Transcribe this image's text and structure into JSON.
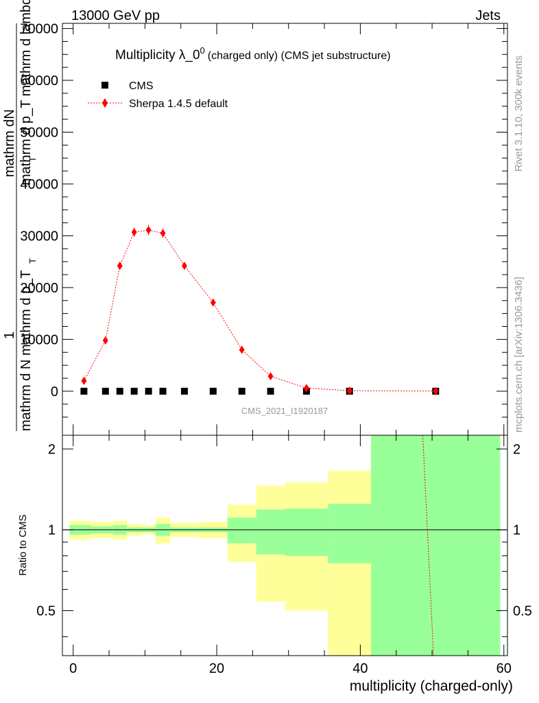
{
  "header": {
    "left": "13000 GeV pp",
    "right": "Jets"
  },
  "side_labels": {
    "rivet": "Rivet 3.1.10,  300k events",
    "mcplots": "mcplots.cern.ch [arXiv:1306.3436]"
  },
  "watermark": "CMS_2021_I1920187",
  "colors": {
    "mc": "#ff0000",
    "band_stat": "#99ff99",
    "band_total": "#ffff99",
    "axis": "#000000",
    "side_text": "#999999"
  },
  "chart_data": [
    {
      "type": "scatter",
      "title_main": "Multiplicity λ_0",
      "title_sup": "0",
      "title_sub": "(charged only) (CMS jet substructure)",
      "ylabel_top": "mathrm dN",
      "ylabel_bottom": "mathrm d p_T mathrm d lambda",
      "ylabel_bottom_sub": "T",
      "ylabel_front_num": "1",
      "ylabel_front_den": "mathrm d N mathrm d p_T",
      "ylabel_front_sub": "T",
      "xlim": [
        -1.5,
        60.5
      ],
      "ylim": [
        -8500,
        71000
      ],
      "yticks": [
        0,
        10000,
        20000,
        30000,
        40000,
        50000,
        60000,
        70000
      ],
      "ytick_labels": [
        "0",
        "10000",
        "20000",
        "30000",
        "40000",
        "50000",
        "60000",
        "70000"
      ],
      "legend": [
        {
          "label": "CMS",
          "marker": "square",
          "color": "#000000"
        },
        {
          "label": "Sherpa 1.4.5 default",
          "marker": "diamond",
          "color": "#ff0000"
        }
      ],
      "series": [
        {
          "name": "CMS",
          "x": [
            1.5,
            4.5,
            6.5,
            8.5,
            10.5,
            12.5,
            15.5,
            19.5,
            23.5,
            27.5,
            32.5,
            38.5,
            50.5
          ],
          "y": [
            0,
            0,
            0,
            0,
            0,
            0,
            0,
            0,
            0,
            0,
            0,
            0,
            0
          ]
        },
        {
          "name": "Sherpa 1.4.5 default",
          "x": [
            1.5,
            4.5,
            6.5,
            8.5,
            10.5,
            12.5,
            15.5,
            19.5,
            23.5,
            27.5,
            32.5,
            38.5,
            50.5
          ],
          "y": [
            2000,
            9800,
            24200,
            30700,
            31100,
            30500,
            24200,
            17100,
            8000,
            2900,
            600,
            100,
            30
          ],
          "yerr": [
            300,
            500,
            800,
            900,
            1000,
            900,
            700,
            600,
            400,
            250,
            100,
            50,
            20
          ]
        }
      ]
    },
    {
      "type": "area",
      "ylabel": "Ratio to CMS",
      "xlabel": "multiplicity (charged-only)",
      "xlim": [
        -1.5,
        60.5
      ],
      "ylim": [
        0.34,
        2.25
      ],
      "xticks": [
        0,
        20,
        40,
        60
      ],
      "xtick_labels": [
        "0",
        "20",
        "40",
        "60"
      ],
      "yticks": [
        0.5,
        1,
        2
      ],
      "ytick_labels": [
        "0.5",
        "1",
        "2"
      ],
      "bins": [
        {
          "lo": -0.5,
          "hi": 2.5,
          "stat": [
            0.96,
            1.04
          ],
          "total": [
            0.92,
            1.08
          ]
        },
        {
          "lo": 2.5,
          "hi": 5.5,
          "stat": [
            0.97,
            1.03
          ],
          "total": [
            0.93,
            1.07
          ]
        },
        {
          "lo": 5.5,
          "hi": 7.5,
          "stat": [
            0.96,
            1.04
          ],
          "total": [
            0.92,
            1.08
          ]
        },
        {
          "lo": 7.5,
          "hi": 9.5,
          "stat": [
            0.98,
            1.02
          ],
          "total": [
            0.95,
            1.05
          ]
        },
        {
          "lo": 9.5,
          "hi": 11.5,
          "stat": [
            0.98,
            1.02
          ],
          "total": [
            0.96,
            1.04
          ]
        },
        {
          "lo": 11.5,
          "hi": 13.5,
          "stat": [
            0.95,
            1.05
          ],
          "total": [
            0.89,
            1.11
          ]
        },
        {
          "lo": 13.5,
          "hi": 17.5,
          "stat": [
            0.98,
            1.02
          ],
          "total": [
            0.94,
            1.06
          ]
        },
        {
          "lo": 17.5,
          "hi": 21.5,
          "stat": [
            0.98,
            1.02
          ],
          "total": [
            0.93,
            1.07
          ]
        },
        {
          "lo": 21.5,
          "hi": 25.5,
          "stat": [
            0.89,
            1.11
          ],
          "total": [
            0.76,
            1.24
          ]
        },
        {
          "lo": 25.5,
          "hi": 29.5,
          "stat": [
            0.81,
            1.19
          ],
          "total": [
            0.54,
            1.46
          ]
        },
        {
          "lo": 29.5,
          "hi": 35.5,
          "stat": [
            0.8,
            1.2
          ],
          "total": [
            0.5,
            1.5
          ]
        },
        {
          "lo": 35.5,
          "hi": 41.5,
          "stat": [
            0.75,
            1.25
          ],
          "total": [
            0.34,
            1.66
          ]
        },
        {
          "lo": 41.5,
          "hi": 59.5,
          "stat": [
            0.34,
            2.25
          ],
          "total": [
            0.34,
            2.25
          ]
        }
      ],
      "reference": 1,
      "mc_ratio_line": {
        "x": [
          48.7,
          50.2
        ],
        "y": [
          2.25,
          0.34
        ]
      }
    }
  ]
}
